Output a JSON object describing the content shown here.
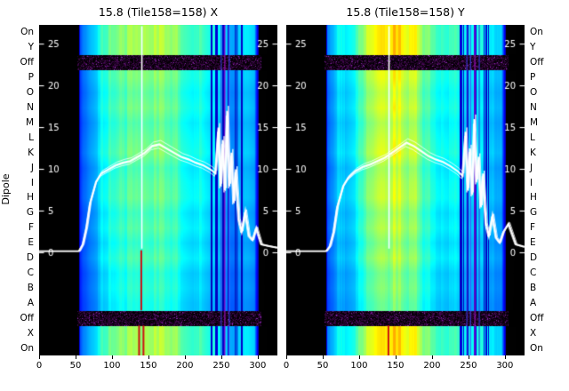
{
  "figure": {
    "ylabel": "Dipole",
    "background": "#ffffff",
    "colors": {
      "overlay_line": "#ffffff",
      "off_row_noise": "#8a14be",
      "red_mark": "#cc1111",
      "heat_low": "#0000c8",
      "heat_mid": "#00c800",
      "heat_high": "#ffff00",
      "panel_background": "#000000"
    }
  },
  "row_labels": [
    "On",
    "Y",
    "Off",
    "P",
    "O",
    "N",
    "M",
    "L",
    "K",
    "J",
    "I",
    "H",
    "G",
    "F",
    "E",
    "D",
    "C",
    "B",
    "A",
    "Off",
    "X",
    "On"
  ],
  "x_tick_labels": [
    "0",
    "50",
    "100",
    "150",
    "200",
    "250",
    "300"
  ],
  "overlay_tick_labels": [
    "0",
    "5",
    "10",
    "15",
    "20",
    "25"
  ],
  "chart_data": [
    {
      "type": "heatmap",
      "title": "15.8 (Tile158=158) X",
      "ylabel": "Dipole",
      "x_range": [
        0,
        327
      ],
      "x_ticks": [
        0,
        50,
        100,
        150,
        200,
        250,
        300
      ],
      "seed": 7,
      "rows": [
        {
          "label": "On",
          "state": "on"
        },
        {
          "label": "Y",
          "state": "on"
        },
        {
          "label": "Off",
          "state": "off"
        },
        {
          "label": "P",
          "state": "normal",
          "gain": 1.07
        },
        {
          "label": "O",
          "state": "normal",
          "gain": 1.0
        },
        {
          "label": "N",
          "state": "normal",
          "gain": 1.05
        },
        {
          "label": "M",
          "state": "normal",
          "gain": 0.97
        },
        {
          "label": "L",
          "state": "normal",
          "gain": 1.02
        },
        {
          "label": "K",
          "state": "normal",
          "gain": 1.06
        },
        {
          "label": "J",
          "state": "normal",
          "gain": 0.95
        },
        {
          "label": "I",
          "state": "normal",
          "gain": 1.0
        },
        {
          "label": "H",
          "state": "normal",
          "gain": 1.02
        },
        {
          "label": "G",
          "state": "normal",
          "gain": 0.93
        },
        {
          "label": "F",
          "state": "normal",
          "gain": 0.98
        },
        {
          "label": "E",
          "state": "normal",
          "gain": 0.9
        },
        {
          "label": "D",
          "state": "normal",
          "gain": 0.97
        },
        {
          "label": "C",
          "state": "normal",
          "gain": 0.87
        },
        {
          "label": "B",
          "state": "normal",
          "gain": 0.9
        },
        {
          "label": "A",
          "state": "normal",
          "gain": 0.85
        },
        {
          "label": "Off",
          "state": "off"
        },
        {
          "label": "X",
          "state": "on"
        },
        {
          "label": "On",
          "state": "on"
        }
      ],
      "heat_profile": {
        "x": [
          0,
          54,
          56,
          62,
          70,
          80,
          95,
          115,
          135,
          150,
          165,
          185,
          210,
          235,
          255,
          275,
          295,
          301,
          327
        ],
        "v": [
          0,
          0,
          0.3,
          0.38,
          0.45,
          0.52,
          0.6,
          0.68,
          0.74,
          0.78,
          0.76,
          0.7,
          0.62,
          0.52,
          0.45,
          0.4,
          0.34,
          0.02,
          0
        ]
      },
      "streak_region": [
        235,
        278
      ],
      "vlines": [
        {
          "x": 249,
          "color": "#3a3adf"
        },
        {
          "x": 254,
          "color": "#b011d0"
        },
        {
          "x": 260,
          "color": "#4646ff"
        }
      ],
      "red_marks": [
        {
          "x": 139,
          "row_start": 15,
          "row_end": 19
        },
        {
          "x": 136,
          "row_start": 20,
          "row_end": 22
        },
        {
          "x": 142,
          "row_start": 20,
          "row_end": 22
        }
      ],
      "overlay": {
        "ylim": [
          -12.3,
          27.3
        ],
        "yticks": [
          0,
          5,
          10,
          15,
          20,
          25
        ],
        "spike_x": 141,
        "line": {
          "x": [
            0,
            55,
            60,
            65,
            70,
            78,
            85,
            95,
            105,
            115,
            125,
            135,
            145,
            155,
            165,
            175,
            185,
            195,
            205,
            215,
            225,
            235,
            242,
            246,
            249,
            252,
            255,
            258,
            261,
            264,
            267,
            270,
            274,
            278,
            283,
            288,
            293,
            298,
            305,
            315,
            327
          ],
          "y": [
            0.2,
            0.2,
            1,
            3,
            6,
            8.5,
            9.5,
            10,
            10.5,
            10.8,
            11,
            11.5,
            12,
            12.8,
            13,
            12.5,
            12,
            11.5,
            11.2,
            10.8,
            10.5,
            10,
            9.5,
            15,
            8,
            13.5,
            7.5,
            17,
            8,
            12,
            6,
            10,
            4,
            2.5,
            5,
            2,
            1.5,
            3,
            1,
            0.8,
            0.6
          ]
        }
      }
    },
    {
      "type": "heatmap",
      "title": "15.8 (Tile158=158) Y",
      "ylabel": "Dipole",
      "x_range": [
        0,
        327
      ],
      "x_ticks": [
        0,
        50,
        100,
        150,
        200,
        250,
        300
      ],
      "seed": 13,
      "rows": [
        {
          "label": "On",
          "state": "on"
        },
        {
          "label": "Y",
          "state": "on"
        },
        {
          "label": "Off",
          "state": "off"
        },
        {
          "label": "P",
          "state": "normal",
          "gain": 1.07
        },
        {
          "label": "O",
          "state": "normal",
          "gain": 1.0
        },
        {
          "label": "N",
          "state": "normal",
          "gain": 1.05
        },
        {
          "label": "M",
          "state": "normal",
          "gain": 0.97
        },
        {
          "label": "L",
          "state": "normal",
          "gain": 1.02
        },
        {
          "label": "K",
          "state": "normal",
          "gain": 1.06
        },
        {
          "label": "J",
          "state": "normal",
          "gain": 0.95
        },
        {
          "label": "I",
          "state": "normal",
          "gain": 1.0
        },
        {
          "label": "H",
          "state": "normal",
          "gain": 1.02
        },
        {
          "label": "G",
          "state": "normal",
          "gain": 0.93
        },
        {
          "label": "F",
          "state": "normal",
          "gain": 0.98
        },
        {
          "label": "E",
          "state": "normal",
          "gain": 0.9
        },
        {
          "label": "D",
          "state": "normal",
          "gain": 0.97
        },
        {
          "label": "C",
          "state": "normal",
          "gain": 0.87
        },
        {
          "label": "B",
          "state": "normal",
          "gain": 0.9
        },
        {
          "label": "A",
          "state": "normal",
          "gain": 0.85
        },
        {
          "label": "Off",
          "state": "off"
        },
        {
          "label": "X",
          "state": "on"
        },
        {
          "label": "On",
          "state": "on"
        }
      ],
      "heat_profile": {
        "x": [
          0,
          54,
          56,
          62,
          70,
          80,
          95,
          115,
          135,
          150,
          165,
          185,
          210,
          235,
          255,
          275,
          295,
          301,
          327
        ],
        "v": [
          0,
          0,
          0.3,
          0.38,
          0.45,
          0.52,
          0.6,
          0.68,
          0.74,
          0.78,
          0.76,
          0.7,
          0.62,
          0.52,
          0.45,
          0.4,
          0.34,
          0.02,
          0
        ]
      },
      "streak_region": [
        235,
        278
      ],
      "vlines": [
        {
          "x": 247,
          "color": "#3a3adf"
        },
        {
          "x": 252,
          "color": "#4646ff"
        },
        {
          "x": 258,
          "color": "#b011d0"
        },
        {
          "x": 264,
          "color": "#3a3adf"
        }
      ],
      "red_marks": [
        {
          "x": 139,
          "row_start": 20,
          "row_end": 22
        }
      ],
      "overlay": {
        "ylim": [
          -12.3,
          27.3
        ],
        "yticks": [
          0,
          5,
          10,
          15,
          20,
          25
        ],
        "spike_x": 141,
        "line": {
          "x": [
            0,
            55,
            60,
            65,
            70,
            78,
            85,
            95,
            105,
            115,
            125,
            135,
            145,
            155,
            165,
            175,
            185,
            195,
            205,
            215,
            225,
            235,
            242,
            246,
            249,
            252,
            255,
            258,
            261,
            264,
            267,
            270,
            274,
            278,
            283,
            288,
            293,
            298,
            305,
            315,
            327
          ],
          "y": [
            0.2,
            0.2,
            0.8,
            2.5,
            5.5,
            8,
            9,
            9.8,
            10.3,
            10.6,
            11,
            11.4,
            12,
            12.6,
            13.2,
            12.8,
            12.2,
            11.6,
            11.2,
            10.9,
            10.4,
            9.8,
            9.2,
            14.5,
            7.5,
            12.5,
            7,
            16,
            8.5,
            11.5,
            5.5,
            9.5,
            3.5,
            2,
            4.5,
            1.8,
            1.2,
            2.5,
            3.5,
            1,
            0.7
          ]
        }
      }
    }
  ]
}
